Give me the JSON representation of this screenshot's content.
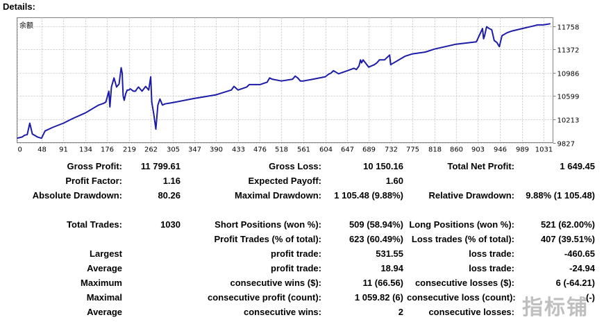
{
  "page": {
    "title": "Details:"
  },
  "chart_data": {
    "type": "line",
    "title": "",
    "legend": "余额",
    "xlabel": "",
    "ylabel": "",
    "x_ticks": [
      0,
      48,
      91,
      134,
      176,
      219,
      262,
      305,
      347,
      390,
      433,
      476,
      518,
      561,
      604,
      647,
      689,
      732,
      775,
      818,
      860,
      903,
      946,
      989,
      1031
    ],
    "y_ticks": [
      9827,
      10213,
      10599,
      10986,
      11372,
      11758
    ],
    "xlim": [
      0,
      1050
    ],
    "ylim": [
      9827,
      11900
    ],
    "line_color": "#1c1ca8",
    "series": [
      {
        "name": "余额",
        "x": [
          0,
          10,
          15,
          20,
          25,
          30,
          40,
          48,
          55,
          70,
          91,
          110,
          134,
          150,
          160,
          170,
          174,
          176,
          180,
          182,
          185,
          190,
          195,
          200,
          204,
          206,
          208,
          210,
          213,
          216,
          219,
          222,
          228,
          232,
          235,
          238,
          245,
          252,
          258,
          262,
          264,
          268,
          272,
          276,
          280,
          285,
          290,
          305,
          347,
          390,
          420,
          425,
          433,
          450,
          455,
          476,
          490,
          495,
          500,
          518,
          540,
          545,
          550,
          555,
          561,
          580,
          604,
          610,
          615,
          620,
          630,
          647,
          660,
          665,
          670,
          673,
          675,
          678,
          689,
          700,
          705,
          710,
          720,
          730,
          732,
          760,
          775,
          800,
          818,
          860,
          900,
          912,
          914,
          916,
          920,
          925,
          930,
          935,
          940,
          945,
          950,
          960,
          970,
          980,
          990,
          1000,
          1010,
          1020,
          1031,
          1045
        ],
        "y": [
          9900,
          9920,
          9950,
          9960,
          10150,
          9970,
          9920,
          9900,
          10020,
          10080,
          10150,
          10230,
          10320,
          10400,
          10450,
          10480,
          10500,
          10560,
          10680,
          10420,
          10750,
          10900,
          10750,
          10800,
          11070,
          10980,
          10600,
          10530,
          10640,
          10700,
          10700,
          10720,
          10680,
          10680,
          10720,
          10750,
          10680,
          10760,
          10700,
          10920,
          10500,
          10300,
          10050,
          10450,
          10550,
          10450,
          10470,
          10490,
          10560,
          10620,
          10700,
          10760,
          10700,
          10750,
          10790,
          10790,
          10830,
          10900,
          10880,
          10850,
          10880,
          10930,
          10900,
          10850,
          10850,
          10880,
          10920,
          10960,
          10980,
          11020,
          10970,
          11020,
          11060,
          11040,
          11100,
          11200,
          11150,
          11200,
          11080,
          11120,
          11150,
          11200,
          11200,
          11280,
          11120,
          11260,
          11300,
          11330,
          11380,
          11460,
          11500,
          11720,
          11550,
          11600,
          11750,
          11720,
          11700,
          11520,
          11490,
          11420,
          11600,
          11650,
          11680,
          11700,
          11720,
          11740,
          11760,
          11780,
          11780,
          11800
        ]
      }
    ]
  },
  "stats": {
    "gross_profit": {
      "label": "Gross Profit:",
      "value": "11 799.61"
    },
    "gross_loss": {
      "label": "Gross Loss:",
      "value": "10 150.16"
    },
    "total_net_profit": {
      "label": "Total Net Profit:",
      "value": "1 649.45"
    },
    "profit_factor": {
      "label": "Profit Factor:",
      "value": "1.16"
    },
    "expected_payoff": {
      "label": "Expected Payoff:",
      "value": "1.60"
    },
    "absolute_drawdown": {
      "label": "Absolute Drawdown:",
      "value": "80.26"
    },
    "maximal_drawdown": {
      "label": "Maximal Drawdown:",
      "value": "1 105.48 (9.88%)"
    },
    "relative_drawdown": {
      "label": "Relative Drawdown:",
      "value": "9.88% (1 105.48)"
    },
    "total_trades": {
      "label": "Total Trades:",
      "value": "1030"
    },
    "short_positions": {
      "label": "Short Positions (won %):",
      "value": "509 (58.94%)"
    },
    "long_positions": {
      "label": "Long Positions (won %):",
      "value": "521 (62.00%)"
    },
    "profit_trades": {
      "label": "Profit Trades (% of total):",
      "value": "623 (60.49%)"
    },
    "loss_trades": {
      "label": "Loss trades (% of total):",
      "value": "407 (39.51%)"
    },
    "largest": {
      "label": "Largest",
      "profit_label": "profit trade:",
      "profit_value": "531.55",
      "loss_label": "loss trade:",
      "loss_value": "-460.65"
    },
    "average": {
      "label": "Average",
      "profit_label": "profit trade:",
      "profit_value": "18.94",
      "loss_label": "loss trade:",
      "loss_value": "-24.94"
    },
    "maximum": {
      "label": "Maximum",
      "profit_label": "consecutive wins ($):",
      "profit_value": "11 (66.56)",
      "loss_label": "consecutive losses ($):",
      "loss_value": "6 (-64.21)"
    },
    "maximal": {
      "label": "Maximal",
      "profit_label": "consecutive profit (count):",
      "profit_value": "1 059.82 (6)",
      "loss_label": "consecutive loss (count):",
      "loss_value": "-(-)"
    },
    "average_consec": {
      "label": "Average",
      "profit_label": "consecutive wins:",
      "profit_value": "2",
      "loss_label": "consecutive losses:",
      "loss_value": ""
    }
  },
  "watermark": {
    "text": "指标铺"
  }
}
